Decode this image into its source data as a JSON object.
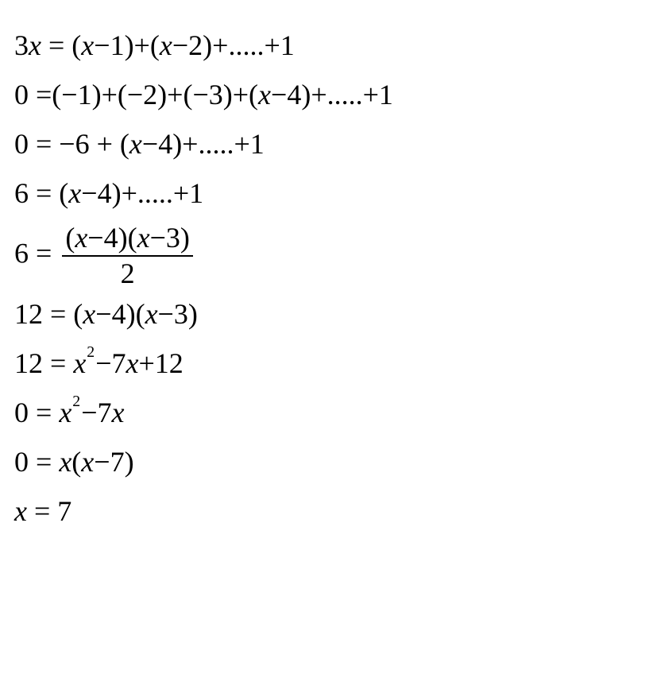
{
  "text_color": "#000000",
  "background_color": "#ffffff",
  "font_family": "Times New Roman",
  "font_size": 36,
  "lines": {
    "l1_lhs": "3",
    "l1_x": "x",
    "l1_eq": " = (",
    "l1_x2": "x",
    "l1_m1": "−1)+(",
    "l1_x3": "x",
    "l1_m2": "−2)+.....+1",
    "l2_lhs": "0 =(−1)+(−2)+(−3)+(",
    "l2_x": "x",
    "l2_rest": "−4)+.....+1",
    "l3_lhs": "0 = −6 + (",
    "l3_x": "x",
    "l3_rest": "−4)+.....+1",
    "l4_lhs": "6 = (",
    "l4_x": "x",
    "l4_rest": "−4)+.....+1",
    "l5_lhs": "6 = ",
    "l5_num_a": "(",
    "l5_num_x1": "x",
    "l5_num_b": "−4)(",
    "l5_num_x2": "x",
    "l5_num_c": "−3)",
    "l5_den": "2",
    "l6_lhs": "12 = (",
    "l6_x1": "x",
    "l6_mid": "−4)(",
    "l6_x2": "x",
    "l6_rest": "−3)",
    "l7_lhs": "12 = ",
    "l7_x": "x",
    "l7_sup": "2",
    "l7_mid": "−7",
    "l7_x2": "x",
    "l7_rest": "+12",
    "l8_lhs": "0 = ",
    "l8_x": "x",
    "l8_sup": "2",
    "l8_mid": "−7",
    "l8_x2": "x",
    "l9_lhs": "0 = ",
    "l9_x": "x",
    "l9_mid": "(",
    "l9_x2": "x",
    "l9_rest": "−7)",
    "l10_x": "x",
    "l10_rest": " = 7"
  }
}
